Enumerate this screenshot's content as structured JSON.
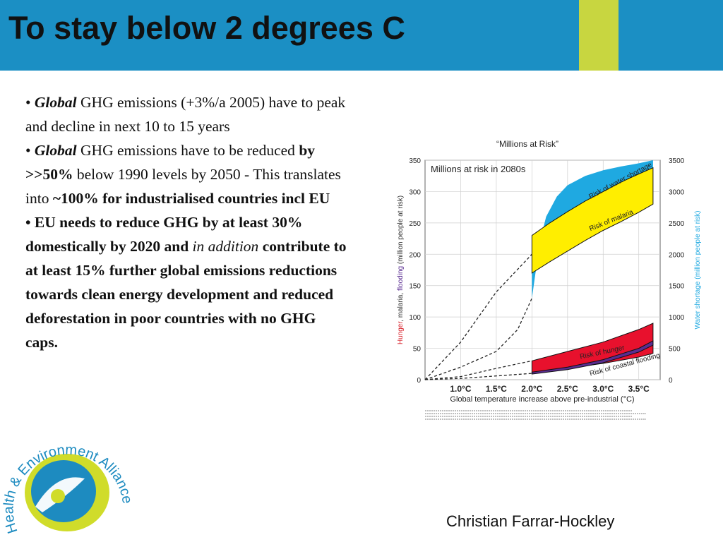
{
  "slide": {
    "title": "To stay below 2 degrees C",
    "author": "Christian Farrar-Hockley"
  },
  "bullets": [
    {
      "r": [
        {
          "t": "• ",
          "w": "n"
        },
        {
          "t": "Global",
          "w": "bi"
        },
        {
          "t": " GHG emissions (+3%/a 2005) have to peak and decline in next 10 to 15 years",
          "w": "n"
        }
      ]
    },
    {
      "r": [
        {
          "t": "• ",
          "w": "n"
        },
        {
          "t": "Global",
          "w": "bi"
        },
        {
          "t": " GHG emissions have to be reduced ",
          "w": "n"
        },
        {
          "t": "by >>50%",
          "w": "b"
        },
        {
          "t": " below 1990 levels by 2050 - This translates into ",
          "w": "n"
        },
        {
          "t": "~100% for industrialised countries incl EU",
          "w": "b"
        }
      ]
    },
    {
      "r": [
        {
          "t": "• EU needs to reduce GHG by at least 30% domestically by 2020 and ",
          "w": "b"
        },
        {
          "t": "in addition",
          "w": "i"
        },
        {
          "t": " contribute to at least 15% further global emissions reductions towards clean energy development and reduced deforestation in poor countries with no GHG caps.",
          "w": "b"
        }
      ]
    }
  ],
  "logo": {
    "text": "Health & Environment Alliance"
  },
  "chart_data": {
    "type": "area",
    "title": "“Millions at Risk”",
    "subtitle": "Millions at risk in 2080s",
    "xlabel": "Global temperature increase above pre-industrial (°C)",
    "ylabel_left_parts": [
      {
        "t": "Hunger",
        "c": "#d8202a"
      },
      {
        "t": ", malaria, ",
        "c": "#333333"
      },
      {
        "t": "flooding",
        "c": "#5a2d91"
      },
      {
        "t": " (million people at risk)",
        "c": "#333333"
      }
    ],
    "ylabel_right": "Water shortage (million people at risk)",
    "x_ticks": [
      "1.0°C",
      "1.5°C",
      "2.0°C",
      "2.5°C",
      "3.0°C",
      "3.5°C"
    ],
    "x_tick_values": [
      1.0,
      1.5,
      2.0,
      2.5,
      3.0,
      3.5
    ],
    "xlim": [
      0.5,
      3.8
    ],
    "ylim_left": [
      0,
      350
    ],
    "y_ticks_left": [
      "0",
      "50",
      "100",
      "150",
      "200",
      "250",
      "300",
      "350"
    ],
    "y_tick_values_left": [
      0,
      50,
      100,
      150,
      200,
      250,
      300,
      350
    ],
    "ylim_right": [
      0,
      3500
    ],
    "y_ticks_right": [
      "0",
      "500",
      "1000",
      "1500",
      "2000",
      "2500",
      "3000",
      "3500"
    ],
    "y_tick_values_right": [
      0,
      500,
      1000,
      1500,
      2000,
      2500,
      3000,
      3500
    ],
    "grid": true,
    "series": [
      {
        "name": "Risk of water shortage",
        "color": "#1fa9e1",
        "x": [
          2.0,
          2.0,
          2.05,
          2.1,
          2.2,
          2.35,
          2.5,
          2.75,
          3.0,
          3.25,
          3.5,
          3.7
        ],
        "upper": [
          130,
          185,
          195,
          215,
          260,
          292,
          310,
          325,
          334,
          340,
          345,
          350
        ],
        "lower": [
          90,
          130,
          170,
          200,
          210,
          240,
          258,
          270,
          285,
          295,
          305,
          320
        ]
      },
      {
        "name": "Risk of malaria",
        "color": "#ffee00",
        "x": [
          2.0,
          2.25,
          2.5,
          2.75,
          3.0,
          3.25,
          3.5,
          3.7
        ],
        "upper": [
          230,
          250,
          268,
          285,
          300,
          315,
          328,
          338
        ],
        "lower": [
          170,
          188,
          205,
          222,
          238,
          252,
          267,
          280
        ]
      },
      {
        "name": "Risk of hunger",
        "color": "#e8112d",
        "x": [
          2.0,
          2.5,
          3.0,
          3.5,
          3.7
        ],
        "upper": [
          30,
          45,
          60,
          80,
          90
        ],
        "lower": [
          10,
          18,
          26,
          36,
          42
        ]
      },
      {
        "name": "Risk of coastal flooding",
        "color": "#5a2d91",
        "x": [
          2.0,
          2.5,
          3.0,
          3.5,
          3.7
        ],
        "upper": [
          12,
          20,
          32,
          50,
          62
        ],
        "lower": [
          9,
          16,
          27,
          44,
          55
        ]
      }
    ],
    "dashed_lines": [
      {
        "x": [
          0.5,
          1.0,
          1.5,
          2.0
        ],
        "y": [
          0,
          60,
          140,
          200
        ]
      },
      {
        "x": [
          0.5,
          1.0,
          1.5,
          1.8,
          2.0
        ],
        "y": [
          0,
          20,
          45,
          80,
          130
        ]
      },
      {
        "x": [
          0.5,
          1.0,
          1.5,
          2.0
        ],
        "y": [
          0,
          5,
          18,
          30
        ]
      },
      {
        "x": [
          0.5,
          1.0,
          1.5,
          2.0
        ],
        "y": [
          0,
          2,
          6,
          10
        ]
      }
    ]
  }
}
